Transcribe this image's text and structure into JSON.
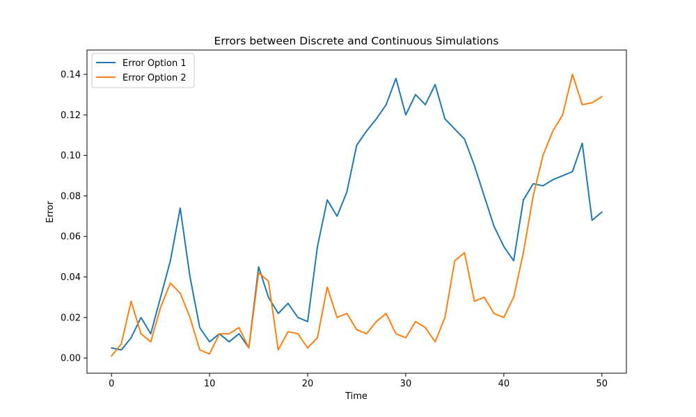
{
  "chart_data": {
    "type": "line",
    "title": "Errors between Discrete and Continuous Simulations",
    "xlabel": "Time",
    "ylabel": "Error",
    "xlim": [
      -2.5,
      52.5
    ],
    "ylim": [
      -0.0075,
      0.152
    ],
    "xticks": [
      0,
      10,
      20,
      30,
      40,
      50
    ],
    "xtick_labels": [
      "0",
      "10",
      "20",
      "30",
      "40",
      "50"
    ],
    "yticks": [
      0.0,
      0.02,
      0.04,
      0.06,
      0.08,
      0.1,
      0.12,
      0.14
    ],
    "ytick_labels": [
      "0.00",
      "0.02",
      "0.04",
      "0.06",
      "0.08",
      "0.10",
      "0.12",
      "0.14"
    ],
    "grid": false,
    "legend_position": "top-left",
    "x": [
      0,
      1,
      2,
      3,
      4,
      5,
      6,
      7,
      8,
      9,
      10,
      11,
      12,
      13,
      14,
      15,
      16,
      17,
      18,
      19,
      20,
      21,
      22,
      23,
      24,
      25,
      26,
      27,
      28,
      29,
      30,
      31,
      32,
      33,
      34,
      35,
      36,
      37,
      38,
      39,
      40,
      41,
      42,
      43,
      44,
      45,
      46,
      47,
      48,
      49,
      50
    ],
    "series": [
      {
        "name": "Error Option 1",
        "color": "#1f77b4",
        "values": [
          0.005,
          0.004,
          0.01,
          0.02,
          0.012,
          0.03,
          0.048,
          0.074,
          0.04,
          0.015,
          0.008,
          0.012,
          0.008,
          0.012,
          0.005,
          0.045,
          0.03,
          0.022,
          0.027,
          0.02,
          0.018,
          0.055,
          0.078,
          0.07,
          0.082,
          0.105,
          0.112,
          0.118,
          0.125,
          0.138,
          0.12,
          0.13,
          0.125,
          0.135,
          0.118,
          0.113,
          0.108,
          0.095,
          0.08,
          0.065,
          0.055,
          0.048,
          0.078,
          0.086,
          0.085,
          0.088,
          0.09,
          0.092,
          0.106,
          0.068,
          0.072
        ]
      },
      {
        "name": "Error Option 2",
        "color": "#ff7f0e",
        "values": [
          0.001,
          0.007,
          0.028,
          0.012,
          0.008,
          0.025,
          0.037,
          0.032,
          0.02,
          0.004,
          0.002,
          0.012,
          0.012,
          0.015,
          0.005,
          0.042,
          0.038,
          0.004,
          0.013,
          0.012,
          0.005,
          0.01,
          0.035,
          0.02,
          0.022,
          0.014,
          0.012,
          0.018,
          0.022,
          0.012,
          0.01,
          0.018,
          0.015,
          0.008,
          0.02,
          0.048,
          0.052,
          0.028,
          0.03,
          0.022,
          0.02,
          0.03,
          0.052,
          0.08,
          0.1,
          0.112,
          0.12,
          0.14,
          0.125,
          0.126,
          0.129
        ]
      }
    ]
  }
}
